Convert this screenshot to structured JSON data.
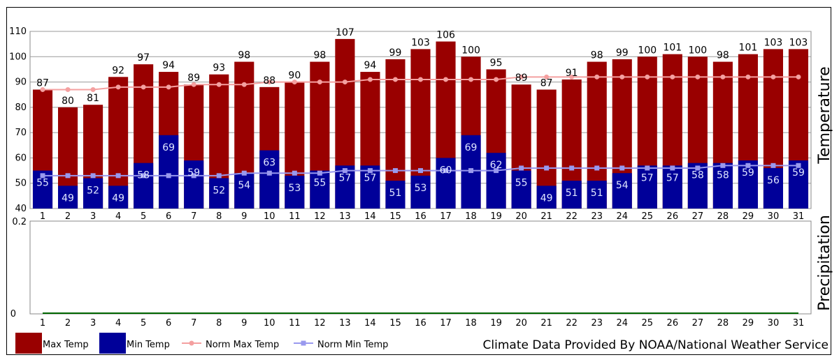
{
  "chart_data": [
    {
      "type": "bar",
      "ylabel": "Temperature",
      "ylim": [
        40,
        110
      ],
      "yticks": [
        40,
        50,
        60,
        70,
        80,
        90,
        100,
        110
      ],
      "categories": [
        "1",
        "2",
        "3",
        "4",
        "5",
        "6",
        "7",
        "8",
        "9",
        "10",
        "11",
        "12",
        "13",
        "14",
        "15",
        "16",
        "17",
        "18",
        "19",
        "20",
        "21",
        "22",
        "23",
        "24",
        "25",
        "26",
        "27",
        "28",
        "29",
        "30",
        "31"
      ],
      "series": [
        {
          "name": "Max Temp",
          "kind": "bar",
          "color": "#990000",
          "values": [
            87,
            80,
            81,
            92,
            97,
            94,
            89,
            93,
            98,
            88,
            90,
            98,
            107,
            94,
            99,
            103,
            106,
            100,
            95,
            89,
            87,
            91,
            98,
            99,
            100,
            101,
            100,
            98,
            101,
            103,
            103
          ]
        },
        {
          "name": "Min Temp",
          "kind": "bar",
          "color": "#000099",
          "values": [
            55,
            49,
            52,
            49,
            58,
            69,
            59,
            52,
            54,
            63,
            53,
            55,
            57,
            57,
            51,
            53,
            60,
            69,
            62,
            55,
            49,
            51,
            51,
            54,
            57,
            57,
            58,
            58,
            59,
            56,
            59
          ]
        },
        {
          "name": "Norm Max Temp",
          "kind": "line",
          "color": "#f4a0a0",
          "values": [
            87,
            87,
            87,
            88,
            88,
            88,
            89,
            89,
            89,
            90,
            90,
            90,
            90,
            91,
            91,
            91,
            91,
            91,
            91,
            92,
            92,
            92,
            92,
            92,
            92,
            92,
            92,
            92,
            92,
            92,
            92
          ]
        },
        {
          "name": "Norm Min Temp",
          "kind": "line",
          "color": "#9999ee",
          "values": [
            53,
            53,
            53,
            53,
            53,
            53,
            53,
            53,
            54,
            54,
            54,
            54,
            55,
            55,
            55,
            55,
            55,
            55,
            55,
            56,
            56,
            56,
            56,
            56,
            56,
            56,
            56,
            57,
            57,
            57,
            57
          ]
        }
      ],
      "grid": true
    },
    {
      "type": "line",
      "ylabel": "Precipitation",
      "ylim": [
        0,
        0.2
      ],
      "yticks": [
        "0.2",
        "0"
      ],
      "categories": [
        "1",
        "2",
        "3",
        "4",
        "5",
        "6",
        "7",
        "8",
        "9",
        "10",
        "11",
        "12",
        "13",
        "14",
        "15",
        "16",
        "17",
        "18",
        "19",
        "20",
        "21",
        "22",
        "23",
        "24",
        "25",
        "26",
        "27",
        "28",
        "29",
        "30",
        "31"
      ],
      "values": [
        0,
        0,
        0,
        0,
        0,
        0,
        0,
        0,
        0,
        0,
        0,
        0,
        0,
        0,
        0,
        0,
        0,
        0,
        0,
        0,
        0,
        0,
        0,
        0,
        0,
        0,
        0,
        0,
        0,
        0,
        0
      ],
      "color": "#006600"
    }
  ],
  "legend": [
    {
      "label": "Max Temp",
      "kind": "box",
      "color": "#990000"
    },
    {
      "label": "Min Temp",
      "kind": "box",
      "color": "#000099"
    },
    {
      "label": "Norm Max Temp",
      "kind": "line",
      "color": "#f4a0a0"
    },
    {
      "label": "Norm Min Temp",
      "kind": "line",
      "color": "#9999ee"
    }
  ],
  "credit": "Climate Data Provided By NOAA/National Weather Service"
}
